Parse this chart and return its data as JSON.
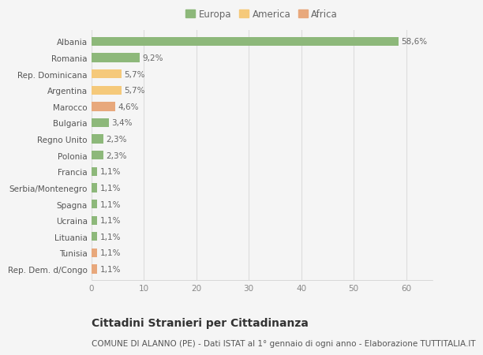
{
  "categories": [
    "Rep. Dem. d/Congo",
    "Tunisia",
    "Lituania",
    "Ucraina",
    "Spagna",
    "Serbia/Montenegro",
    "Francia",
    "Polonia",
    "Regno Unito",
    "Bulgaria",
    "Marocco",
    "Argentina",
    "Rep. Dominicana",
    "Romania",
    "Albania"
  ],
  "values": [
    1.1,
    1.1,
    1.1,
    1.1,
    1.1,
    1.1,
    1.1,
    2.3,
    2.3,
    3.4,
    4.6,
    5.7,
    5.7,
    9.2,
    58.6
  ],
  "labels": [
    "1,1%",
    "1,1%",
    "1,1%",
    "1,1%",
    "1,1%",
    "1,1%",
    "1,1%",
    "2,3%",
    "2,3%",
    "3,4%",
    "4,6%",
    "5,7%",
    "5,7%",
    "9,2%",
    "58,6%"
  ],
  "colors": [
    "#e8a87c",
    "#e8a87c",
    "#8db87a",
    "#8db87a",
    "#8db87a",
    "#8db87a",
    "#8db87a",
    "#8db87a",
    "#8db87a",
    "#8db87a",
    "#e8a87c",
    "#f5c97a",
    "#f5c97a",
    "#8db87a",
    "#8db87a"
  ],
  "legend_labels": [
    "Europa",
    "America",
    "Africa"
  ],
  "legend_colors": [
    "#8db87a",
    "#f5c97a",
    "#e8a87c"
  ],
  "title": "Cittadini Stranieri per Cittadinanza",
  "subtitle": "COMUNE DI ALANNO (PE) - Dati ISTAT al 1° gennaio di ogni anno - Elaborazione TUTTITALIA.IT",
  "xlim": [
    0,
    65
  ],
  "xticks": [
    0,
    10,
    20,
    30,
    40,
    50,
    60
  ],
  "background_color": "#f5f5f5",
  "grid_color": "#dddddd",
  "bar_height": 0.55,
  "label_fontsize": 7.5,
  "title_fontsize": 10,
  "subtitle_fontsize": 7.5,
  "tick_fontsize": 7.5,
  "legend_fontsize": 8.5
}
